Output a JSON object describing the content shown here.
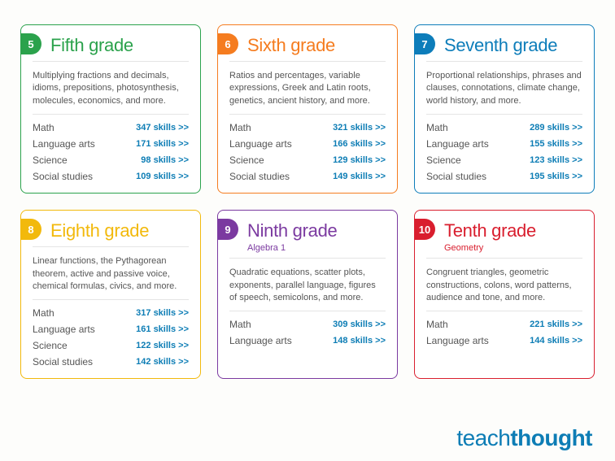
{
  "brand": {
    "part1": "teach",
    "part2": "thought"
  },
  "cards": [
    {
      "num": "5",
      "title": "Fifth grade",
      "subtitle": "",
      "color": "#2ba24c",
      "desc": "Multiplying fractions and decimals, idioms, prepositions, photosynthesis, molecules, economics, and more.",
      "skills": [
        {
          "label": "Math",
          "count": "347 skills >>"
        },
        {
          "label": "Language arts",
          "count": "171 skills >>"
        },
        {
          "label": "Science",
          "count": "98 skills >>"
        },
        {
          "label": "Social studies",
          "count": "109 skills >>"
        }
      ]
    },
    {
      "num": "6",
      "title": "Sixth grade",
      "subtitle": "",
      "color": "#f57c1f",
      "desc": "Ratios and percentages, variable expressions, Greek and Latin roots, genetics, ancient history, and more.",
      "skills": [
        {
          "label": "Math",
          "count": "321 skills >>"
        },
        {
          "label": "Language arts",
          "count": "166 skills >>"
        },
        {
          "label": "Science",
          "count": "129 skills >>"
        },
        {
          "label": "Social studies",
          "count": "149 skills >>"
        }
      ]
    },
    {
      "num": "7",
      "title": "Seventh grade",
      "subtitle": "",
      "color": "#0d7dba",
      "desc": "Proportional relationships, phrases and clauses, connotations, climate change, world history, and more.",
      "skills": [
        {
          "label": "Math",
          "count": "289 skills >>"
        },
        {
          "label": "Language arts",
          "count": "155 skills >>"
        },
        {
          "label": "Science",
          "count": "123 skills >>"
        },
        {
          "label": "Social studies",
          "count": "195 skills >>"
        }
      ]
    },
    {
      "num": "8",
      "title": "Eighth grade",
      "subtitle": "",
      "color": "#f2b90c",
      "desc": "Linear functions, the Pythagorean theorem, active and passive voice, chemical formulas, civics, and more.",
      "skills": [
        {
          "label": "Math",
          "count": "317 skills >>"
        },
        {
          "label": "Language arts",
          "count": "161 skills >>"
        },
        {
          "label": "Science",
          "count": "122 skills >>"
        },
        {
          "label": "Social studies",
          "count": "142 skills >>"
        }
      ]
    },
    {
      "num": "9",
      "title": "Ninth grade",
      "subtitle": "Algebra 1",
      "color": "#7b3aa0",
      "desc": "Quadratic equations, scatter plots, exponents, parallel language, figures of speech, semicolons, and more.",
      "skills": [
        {
          "label": "Math",
          "count": "309 skills >>"
        },
        {
          "label": "Language arts",
          "count": "148 skills >>"
        }
      ]
    },
    {
      "num": "10",
      "title": "Tenth grade",
      "subtitle": "Geometry",
      "color": "#d91e2e",
      "desc": "Congruent triangles, geometric constructions, colons, word patterns, audience and tone, and more.",
      "skills": [
        {
          "label": "Math",
          "count": "221 skills >>"
        },
        {
          "label": "Language arts",
          "count": "144 skills >>"
        }
      ]
    }
  ]
}
